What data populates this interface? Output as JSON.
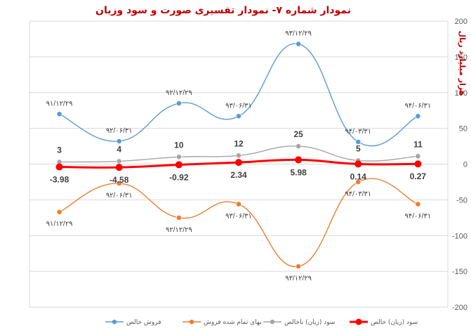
{
  "chart_data": {
    "type": "line",
    "title": "نمودار شماره ۷- نمودار تفسیری صورت و سود وزیان",
    "ylabel": "هزار میلیارد ریال",
    "ylim": [
      -200,
      200
    ],
    "yticks": [
      -200,
      -150,
      -100,
      -50,
      0,
      50,
      100,
      150,
      200
    ],
    "grid": true,
    "legend_position": "bottom",
    "series": [
      {
        "name": "فروش خالص",
        "color": "#5b9bd5",
        "values": [
          70,
          32,
          85,
          67,
          168,
          31,
          67
        ],
        "labels": [
          "۹۱/۱۲/۲۹",
          "۹۲/۰۶/۳۱",
          "۹۲/۱۲/۲۹",
          "۹۳/۰۶/۳۱",
          "۹۳/۱۲/۲۹",
          "۹۴/۰۳/۳۱",
          "۹۴/۰۶/۳۱"
        ],
        "label_pos": [
          "above",
          "above",
          "above",
          "above",
          "above",
          "above",
          "above"
        ]
      },
      {
        "name": "بهای تمام شده فروش",
        "color": "#ed7d31",
        "values": [
          -67,
          -27,
          -75,
          -56,
          -143,
          -25,
          -56
        ],
        "labels": [
          "۹۱/۱۲/۲۹",
          "۹۲/۰۶/۳۱",
          "۹۲/۱۲/۲۹",
          "۹۳/۰۶/۳۱",
          "۹۳/۱۲/۲۹",
          "۹۴/۰۳/۳۱",
          "۹۴/۰۶/۳۱"
        ],
        "label_pos": [
          "below",
          "below",
          "below",
          "below",
          "below",
          "below",
          "below"
        ]
      },
      {
        "name": "سود (زیان) ناخالص",
        "color": "#a5a5a5",
        "values": [
          3,
          4,
          10,
          12,
          25,
          5,
          11
        ],
        "labels": [
          "3",
          "4",
          "10",
          "12",
          "25",
          "5",
          "11"
        ],
        "label_pos": [
          "above",
          "above",
          "above",
          "above",
          "above",
          "above",
          "above"
        ]
      },
      {
        "name": "سود (زیان) خالص",
        "color": "#ff0000",
        "values": [
          -3.98,
          -4.58,
          -0.92,
          2.34,
          5.98,
          0.14,
          0.27
        ],
        "labels": [
          "-3.98",
          "-4.58",
          "-0.92",
          "2.34",
          "5.98",
          "0.14",
          "0.27"
        ],
        "label_pos": [
          "below",
          "below",
          "below",
          "below",
          "below",
          "below",
          "below"
        ]
      }
    ]
  }
}
